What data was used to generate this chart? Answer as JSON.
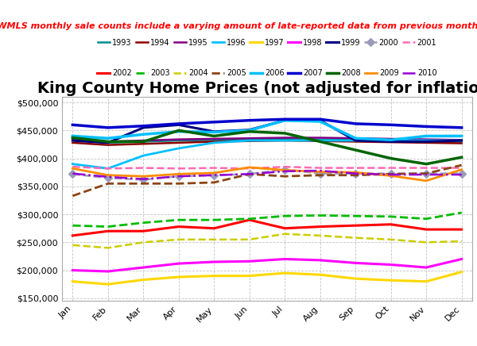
{
  "title": "King County Home Prices (not adjusted for inflation)",
  "subtitle": "NWMLS monthly sale counts include a varying amount of late-reported data from previous months.",
  "months": [
    "Jan",
    "Feb",
    "Mar",
    "Apr",
    "May",
    "Jun",
    "Jul",
    "Aug",
    "Sep",
    "Oct",
    "Nov",
    "Dec"
  ],
  "ylim": [
    145000,
    510000
  ],
  "yticks": [
    150000,
    200000,
    250000,
    300000,
    350000,
    400000,
    450000,
    500000
  ],
  "series": {
    "1993": {
      "color": "#008B8B",
      "linestyle": "-",
      "linewidth": 1.8,
      "marker": null,
      "data": [
        432000,
        428000,
        430000,
        432000,
        433000,
        434000,
        435000,
        434000,
        433000,
        432000,
        430000,
        430000
      ]
    },
    "1994": {
      "color": "#8B0000",
      "linestyle": "-",
      "linewidth": 1.8,
      "marker": null,
      "data": [
        428000,
        424000,
        426000,
        428000,
        430000,
        431000,
        432000,
        431000,
        430000,
        429000,
        428000,
        427000
      ]
    },
    "1995": {
      "color": "#800080",
      "linestyle": "-",
      "linewidth": 1.8,
      "marker": null,
      "data": [
        433000,
        430000,
        432000,
        434000,
        435000,
        436000,
        437000,
        437000,
        436000,
        435000,
        434000,
        433000
      ]
    },
    "1996": {
      "color": "#00BFFF",
      "linestyle": "-",
      "linewidth": 2.0,
      "marker": null,
      "data": [
        390000,
        382000,
        405000,
        418000,
        428000,
        432000,
        432000,
        432000,
        432000,
        432000,
        432000,
        432000
      ]
    },
    "1997": {
      "color": "#FFD700",
      "linestyle": "-",
      "linewidth": 2.2,
      "marker": null,
      "data": [
        180000,
        175000,
        183000,
        188000,
        190000,
        190000,
        195000,
        192000,
        185000,
        182000,
        180000,
        197000
      ]
    },
    "1998": {
      "color": "#FF00FF",
      "linestyle": "-",
      "linewidth": 2.2,
      "marker": null,
      "data": [
        200000,
        198000,
        205000,
        212000,
        215000,
        216000,
        220000,
        218000,
        213000,
        210000,
        205000,
        220000
      ]
    },
    "1999": {
      "color": "#000080",
      "linestyle": "-",
      "linewidth": 2.2,
      "marker": null,
      "data": [
        432000,
        428000,
        455000,
        460000,
        448000,
        451000,
        468000,
        468000,
        432000,
        430000,
        430000,
        432000
      ]
    },
    "2000": {
      "color": "#9B9BBA",
      "linestyle": "--",
      "linewidth": 1.8,
      "marker": "D",
      "data": [
        372000,
        365000,
        362000,
        368000,
        370000,
        372000,
        380000,
        373000,
        373000,
        373000,
        373000,
        373000
      ]
    },
    "2001": {
      "color": "#FF69B4",
      "linestyle": "--",
      "linewidth": 1.8,
      "marker": null,
      "data": [
        385000,
        382000,
        383000,
        382000,
        383000,
        382000,
        385000,
        383000,
        383000,
        383000,
        383000,
        383000
      ]
    },
    "2002": {
      "color": "#FF0000",
      "linestyle": "-",
      "linewidth": 2.2,
      "marker": null,
      "data": [
        262000,
        270000,
        270000,
        278000,
        275000,
        290000,
        275000,
        278000,
        280000,
        282000,
        273000,
        273000
      ]
    },
    "2003": {
      "color": "#00BB00",
      "linestyle": "--",
      "linewidth": 2.0,
      "marker": null,
      "data": [
        280000,
        278000,
        285000,
        290000,
        290000,
        292000,
        297000,
        298000,
        297000,
        296000,
        292000,
        303000
      ]
    },
    "2004": {
      "color": "#CCCC00",
      "linestyle": "--",
      "linewidth": 1.8,
      "marker": null,
      "data": [
        245000,
        240000,
        250000,
        255000,
        255000,
        255000,
        265000,
        262000,
        258000,
        255000,
        250000,
        252000
      ]
    },
    "2005": {
      "color": "#8B4513",
      "linestyle": "--",
      "linewidth": 2.0,
      "marker": null,
      "data": [
        333000,
        355000,
        355000,
        355000,
        357000,
        372000,
        368000,
        370000,
        370000,
        372000,
        373000,
        388000
      ]
    },
    "2006": {
      "color": "#00BFFF",
      "linestyle": "-",
      "linewidth": 2.5,
      "marker": null,
      "data": [
        440000,
        436000,
        443000,
        448000,
        447000,
        450000,
        468000,
        466000,
        436000,
        433000,
        440000,
        440000
      ]
    },
    "2007": {
      "color": "#0000CD",
      "linestyle": "-",
      "linewidth": 2.5,
      "marker": null,
      "data": [
        460000,
        455000,
        458000,
        462000,
        465000,
        468000,
        470000,
        470000,
        462000,
        460000,
        457000,
        455000
      ]
    },
    "2008": {
      "color": "#006400",
      "linestyle": "-",
      "linewidth": 2.5,
      "marker": null,
      "data": [
        437000,
        430000,
        430000,
        450000,
        440000,
        448000,
        445000,
        430000,
        415000,
        400000,
        390000,
        402000
      ]
    },
    "2009": {
      "color": "#FF8C00",
      "linestyle": "-",
      "linewidth": 2.0,
      "marker": null,
      "data": [
        382000,
        370000,
        368000,
        372000,
        374000,
        384000,
        379000,
        376000,
        375000,
        369000,
        360000,
        380000
      ]
    },
    "2010": {
      "color": "#9400D3",
      "linestyle": "-.",
      "linewidth": 1.8,
      "marker": null,
      "data": [
        373000,
        367000,
        363000,
        368000,
        370000,
        372000,
        377000,
        378000,
        373000,
        371000,
        371000,
        371000
      ]
    }
  },
  "legend_row1": [
    "1993",
    "1994",
    "1995",
    "1996",
    "1997",
    "1998",
    "1999",
    "2000",
    "2001"
  ],
  "legend_row2": [
    "2002",
    "2003",
    "2004",
    "2005",
    "2006",
    "2007",
    "2008",
    "2009",
    "2010"
  ],
  "background_color": "#FFFFFF",
  "grid_color": "#AAAAAA",
  "title_fontsize": 14,
  "subtitle_fontsize": 8,
  "subtitle_color": "#FF0000"
}
